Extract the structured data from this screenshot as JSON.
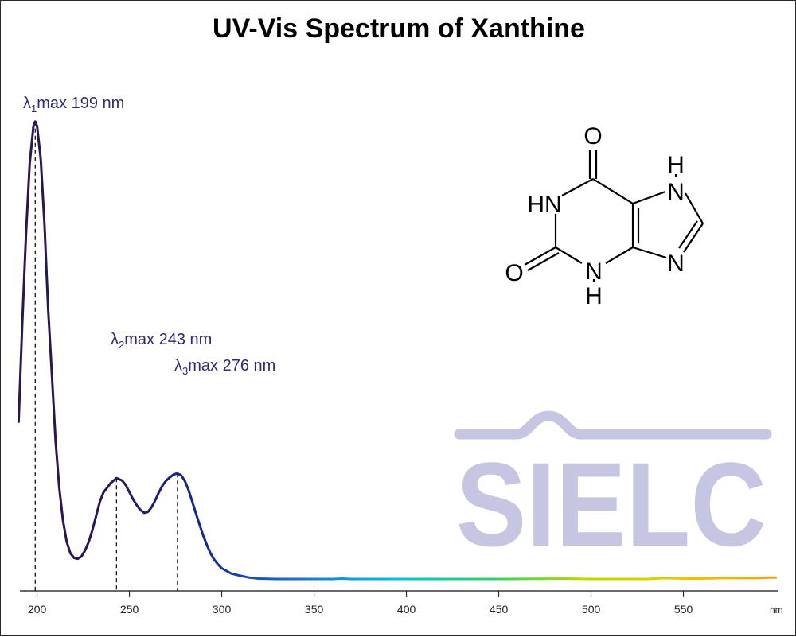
{
  "chart_data": {
    "type": "line",
    "title": "UV-Vis Spectrum of Xanthine",
    "x_unit": "nm",
    "xlim": [
      190,
      600
    ],
    "x_ticks": [
      200,
      250,
      300,
      350,
      400,
      450,
      500,
      550
    ],
    "grid": false,
    "series": [
      {
        "x": [
          190,
          192,
          194,
          196,
          198,
          199,
          200,
          202,
          204,
          206,
          208,
          210,
          212,
          214,
          216,
          218,
          220,
          222,
          224,
          226,
          228,
          230,
          232,
          234,
          236,
          238,
          240,
          243,
          246,
          248,
          250,
          252,
          254,
          256,
          258,
          260,
          262,
          264,
          266,
          268,
          270,
          272,
          274,
          276,
          278,
          280,
          282,
          284,
          286,
          288,
          290,
          292,
          294,
          296,
          298,
          300,
          305,
          310,
          315,
          320,
          330,
          340,
          350,
          355,
          360,
          365,
          370,
          380,
          400,
          450,
          485,
          500,
          530,
          540,
          550,
          560,
          570,
          580,
          590,
          596,
          600
        ],
        "y": [
          0.34,
          0.55,
          0.74,
          0.89,
          0.97,
          0.98,
          0.97,
          0.9,
          0.76,
          0.58,
          0.44,
          0.3,
          0.2,
          0.13,
          0.085,
          0.06,
          0.05,
          0.048,
          0.053,
          0.066,
          0.085,
          0.11,
          0.14,
          0.17,
          0.19,
          0.2,
          0.21,
          0.22,
          0.215,
          0.205,
          0.19,
          0.175,
          0.162,
          0.152,
          0.146,
          0.148,
          0.158,
          0.173,
          0.19,
          0.205,
          0.215,
          0.222,
          0.228,
          0.23,
          0.226,
          0.214,
          0.195,
          0.17,
          0.145,
          0.12,
          0.097,
          0.077,
          0.059,
          0.046,
          0.036,
          0.028,
          0.017,
          0.012,
          0.008,
          0.006,
          0.005,
          0.005,
          0.005,
          0.005,
          0.005,
          0.006,
          0.005,
          0.005,
          0.005,
          0.005,
          0.006,
          0.005,
          0.005,
          0.007,
          0.006,
          0.006,
          0.007,
          0.007,
          0.007,
          0.008,
          0.008
        ]
      }
    ],
    "peaks": [
      {
        "x": 199,
        "y": 0.98,
        "label_sym": "λ",
        "label_sub": "1",
        "label_rest": "max  199 nm"
      },
      {
        "x": 243,
        "y": 0.22,
        "label_sym": "λ",
        "label_sub": "2",
        "label_rest": "max  243 nm"
      },
      {
        "x": 276,
        "y": 0.23,
        "label_sym": "λ",
        "label_sub": "3",
        "label_rest": "max  276 nm"
      }
    ],
    "line_color": "#2b1650",
    "spectrum_colors": [
      "#2b1650",
      "#2b1650",
      "#0f2a9c",
      "#1c74d8",
      "#00c4d8",
      "#33d066",
      "#b6dc00",
      "#f2c400",
      "#f6a000"
    ]
  },
  "molecule": {
    "atoms": [
      "O",
      "HN",
      "H",
      "N",
      "N",
      "O",
      "N",
      "H"
    ]
  },
  "watermark": {
    "text": "SIELC",
    "color": "#c6c5e2"
  }
}
